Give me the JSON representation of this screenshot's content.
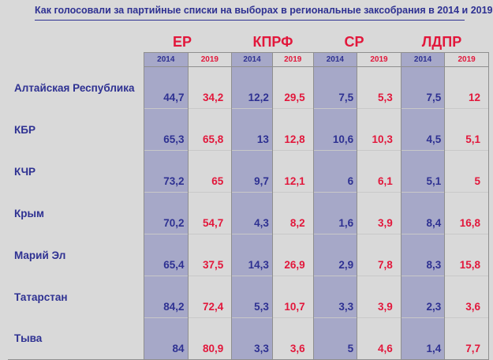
{
  "title": "Как голосовали за партийные списки на выборах в региональные заксобрания в 2014 и 2019",
  "colors": {
    "background": "#d9d9d9",
    "blue_text": "#2e3192",
    "red_text": "#e2173b",
    "shade_2014": "#a6a8c8"
  },
  "chart_data": {
    "type": "table",
    "title": "Как голосовали за партийные списки на выборах в региональные заксобрания в 2014 и 2019",
    "parties": [
      "ЕР",
      "КПРФ",
      "СР",
      "ЛДПР"
    ],
    "years": [
      "2014",
      "2019"
    ],
    "rows": [
      {
        "region": "Алтайская Республика",
        "values": [
          "44,7",
          "34,2",
          "12,2",
          "29,5",
          "7,5",
          "5,3",
          "7,5",
          "12"
        ]
      },
      {
        "region": "КБР",
        "values": [
          "65,3",
          "65,8",
          "13",
          "12,8",
          "10,6",
          "10,3",
          "4,5",
          "5,1"
        ]
      },
      {
        "region": "КЧР",
        "values": [
          "73,2",
          "65",
          "9,7",
          "12,1",
          "6",
          "6,1",
          "5,1",
          "5"
        ]
      },
      {
        "region": "Крым",
        "values": [
          "70,2",
          "54,7",
          "4,3",
          "8,2",
          "1,6",
          "3,9",
          "8,4",
          "16,8"
        ]
      },
      {
        "region": "Марий Эл",
        "values": [
          "65,4",
          "37,5",
          "14,3",
          "26,9",
          "2,9",
          "7,8",
          "8,3",
          "15,8"
        ]
      },
      {
        "region": "Татарстан",
        "values": [
          "84,2",
          "72,4",
          "5,3",
          "10,7",
          "3,3",
          "3,9",
          "2,3",
          "3,6"
        ]
      },
      {
        "region": "Тыва",
        "values": [
          "84",
          "80,9",
          "3,3",
          "3,6",
          "5",
          "4,6",
          "1,4",
          "7,7"
        ]
      }
    ]
  }
}
